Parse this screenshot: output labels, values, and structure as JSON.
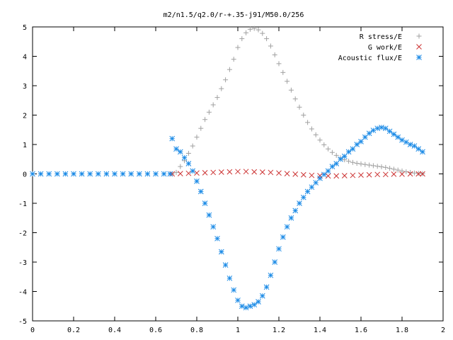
{
  "chart_data": {
    "type": "scatter",
    "title": "m2/n1.5/q2.0/r-+.35-j91/M50.0/256",
    "xlabel": "",
    "ylabel": "",
    "xlim": [
      0,
      2
    ],
    "ylim": [
      -5,
      5
    ],
    "x_ticks": [
      "0",
      "0.2",
      "0.4",
      "0.6",
      "0.8",
      "1",
      "1.2",
      "1.4",
      "1.6",
      "1.8",
      "2"
    ],
    "y_ticks": [
      "5",
      "4",
      "3",
      "2",
      "1",
      "0",
      "-1",
      "-2",
      "-3",
      "-4",
      "-5"
    ],
    "grid": false,
    "legend_position": "top-right",
    "series": [
      {
        "name": "R stress/E",
        "marker": "plus",
        "color": "#a0a0a0",
        "points": [
          [
            0.68,
            0.0
          ],
          [
            0.7,
            0.05
          ],
          [
            0.72,
            0.25
          ],
          [
            0.74,
            0.45
          ],
          [
            0.76,
            0.7
          ],
          [
            0.78,
            0.95
          ],
          [
            0.8,
            1.25
          ],
          [
            0.82,
            1.55
          ],
          [
            0.84,
            1.85
          ],
          [
            0.86,
            2.1
          ],
          [
            0.88,
            2.35
          ],
          [
            0.9,
            2.6
          ],
          [
            0.92,
            2.9
          ],
          [
            0.94,
            3.2
          ],
          [
            0.96,
            3.55
          ],
          [
            0.98,
            3.9
          ],
          [
            1.0,
            4.3
          ],
          [
            1.02,
            4.6
          ],
          [
            1.04,
            4.8
          ],
          [
            1.06,
            4.92
          ],
          [
            1.08,
            4.95
          ],
          [
            1.1,
            4.9
          ],
          [
            1.12,
            4.78
          ],
          [
            1.14,
            4.6
          ],
          [
            1.16,
            4.35
          ],
          [
            1.18,
            4.05
          ],
          [
            1.2,
            3.75
          ],
          [
            1.22,
            3.45
          ],
          [
            1.24,
            3.15
          ],
          [
            1.26,
            2.85
          ],
          [
            1.28,
            2.55
          ],
          [
            1.3,
            2.27
          ],
          [
            1.32,
            2.0
          ],
          [
            1.34,
            1.75
          ],
          [
            1.36,
            1.53
          ],
          [
            1.38,
            1.33
          ],
          [
            1.4,
            1.15
          ],
          [
            1.42,
            0.99
          ],
          [
            1.44,
            0.85
          ],
          [
            1.46,
            0.73
          ],
          [
            1.48,
            0.63
          ],
          [
            1.5,
            0.55
          ],
          [
            1.52,
            0.48
          ],
          [
            1.54,
            0.43
          ],
          [
            1.56,
            0.39
          ],
          [
            1.58,
            0.36
          ],
          [
            1.6,
            0.34
          ],
          [
            1.62,
            0.32
          ],
          [
            1.64,
            0.3
          ],
          [
            1.66,
            0.28
          ],
          [
            1.68,
            0.26
          ],
          [
            1.7,
            0.24
          ],
          [
            1.72,
            0.22
          ],
          [
            1.74,
            0.19
          ],
          [
            1.76,
            0.16
          ],
          [
            1.78,
            0.13
          ],
          [
            1.8,
            0.1
          ],
          [
            1.82,
            0.07
          ],
          [
            1.84,
            0.05
          ],
          [
            1.86,
            0.03
          ],
          [
            1.88,
            0.02
          ],
          [
            1.9,
            0.01
          ]
        ]
      },
      {
        "name": "G work/E",
        "marker": "cross",
        "color": "#cc3333",
        "points": [
          [
            0.68,
            0.0
          ],
          [
            0.72,
            0.01
          ],
          [
            0.76,
            0.02
          ],
          [
            0.8,
            0.03
          ],
          [
            0.84,
            0.04
          ],
          [
            0.88,
            0.05
          ],
          [
            0.92,
            0.06
          ],
          [
            0.96,
            0.07
          ],
          [
            1.0,
            0.08
          ],
          [
            1.04,
            0.08
          ],
          [
            1.08,
            0.07
          ],
          [
            1.12,
            0.06
          ],
          [
            1.16,
            0.05
          ],
          [
            1.2,
            0.03
          ],
          [
            1.24,
            0.01
          ],
          [
            1.28,
            -0.01
          ],
          [
            1.32,
            -0.03
          ],
          [
            1.36,
            -0.05
          ],
          [
            1.4,
            -0.06
          ],
          [
            1.44,
            -0.07
          ],
          [
            1.48,
            -0.07
          ],
          [
            1.52,
            -0.06
          ],
          [
            1.56,
            -0.05
          ],
          [
            1.6,
            -0.04
          ],
          [
            1.64,
            -0.03
          ],
          [
            1.68,
            -0.02
          ],
          [
            1.72,
            -0.02
          ],
          [
            1.76,
            -0.01
          ],
          [
            1.8,
            -0.01
          ],
          [
            1.84,
            0.0
          ],
          [
            1.88,
            0.0
          ],
          [
            1.9,
            0.0
          ]
        ]
      },
      {
        "name": "Acoustic flux/E",
        "marker": "star",
        "color": "#1a8ae6",
        "points": [
          [
            0.0,
            0.0
          ],
          [
            0.04,
            0.0
          ],
          [
            0.08,
            0.0
          ],
          [
            0.12,
            0.0
          ],
          [
            0.16,
            0.0
          ],
          [
            0.2,
            0.0
          ],
          [
            0.24,
            0.0
          ],
          [
            0.28,
            0.0
          ],
          [
            0.32,
            0.0
          ],
          [
            0.36,
            0.0
          ],
          [
            0.4,
            0.0
          ],
          [
            0.44,
            0.0
          ],
          [
            0.48,
            0.0
          ],
          [
            0.52,
            0.0
          ],
          [
            0.56,
            0.0
          ],
          [
            0.6,
            0.0
          ],
          [
            0.64,
            0.0
          ],
          [
            0.67,
            0.0
          ],
          [
            0.68,
            1.2
          ],
          [
            0.7,
            0.85
          ],
          [
            0.72,
            0.75
          ],
          [
            0.74,
            0.55
          ],
          [
            0.76,
            0.35
          ],
          [
            0.78,
            0.1
          ],
          [
            0.8,
            -0.25
          ],
          [
            0.82,
            -0.6
          ],
          [
            0.84,
            -1.0
          ],
          [
            0.86,
            -1.4
          ],
          [
            0.88,
            -1.8
          ],
          [
            0.9,
            -2.2
          ],
          [
            0.92,
            -2.65
          ],
          [
            0.94,
            -3.1
          ],
          [
            0.96,
            -3.55
          ],
          [
            0.98,
            -3.95
          ],
          [
            1.0,
            -4.3
          ],
          [
            1.02,
            -4.5
          ],
          [
            1.04,
            -4.55
          ],
          [
            1.06,
            -4.5
          ],
          [
            1.08,
            -4.45
          ],
          [
            1.1,
            -4.35
          ],
          [
            1.12,
            -4.15
          ],
          [
            1.14,
            -3.85
          ],
          [
            1.16,
            -3.45
          ],
          [
            1.18,
            -3.0
          ],
          [
            1.2,
            -2.55
          ],
          [
            1.22,
            -2.15
          ],
          [
            1.24,
            -1.8
          ],
          [
            1.26,
            -1.5
          ],
          [
            1.28,
            -1.25
          ],
          [
            1.3,
            -1.0
          ],
          [
            1.32,
            -0.8
          ],
          [
            1.34,
            -0.6
          ],
          [
            1.36,
            -0.45
          ],
          [
            1.38,
            -0.3
          ],
          [
            1.4,
            -0.15
          ],
          [
            1.42,
            -0.02
          ],
          [
            1.44,
            0.1
          ],
          [
            1.46,
            0.25
          ],
          [
            1.48,
            0.35
          ],
          [
            1.5,
            0.5
          ],
          [
            1.52,
            0.6
          ],
          [
            1.54,
            0.75
          ],
          [
            1.56,
            0.85
          ],
          [
            1.58,
            1.0
          ],
          [
            1.6,
            1.1
          ],
          [
            1.62,
            1.25
          ],
          [
            1.64,
            1.38
          ],
          [
            1.66,
            1.48
          ],
          [
            1.68,
            1.55
          ],
          [
            1.7,
            1.58
          ],
          [
            1.72,
            1.55
          ],
          [
            1.74,
            1.45
          ],
          [
            1.76,
            1.35
          ],
          [
            1.78,
            1.25
          ],
          [
            1.8,
            1.15
          ],
          [
            1.82,
            1.08
          ],
          [
            1.84,
            1.0
          ],
          [
            1.86,
            0.95
          ],
          [
            1.88,
            0.85
          ],
          [
            1.9,
            0.75
          ]
        ]
      }
    ]
  }
}
